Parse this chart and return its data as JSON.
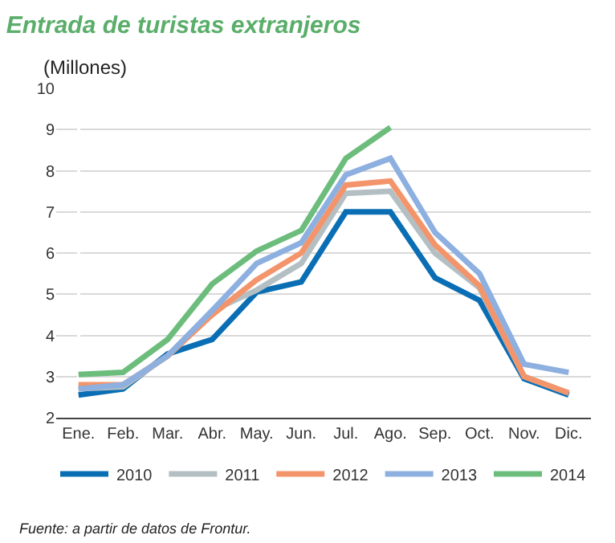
{
  "chart_data": {
    "type": "line",
    "title": "Entrada de turistas extranjeros",
    "subtitle": "(Millones)",
    "categories": [
      "Ene.",
      "Feb.",
      "Mar.",
      "Abr.",
      "May.",
      "Jun.",
      "Jul.",
      "Ago.",
      "Sep.",
      "Oct.",
      "Nov.",
      "Dic."
    ],
    "series": [
      {
        "name": "2010",
        "color": "#0a6eb4",
        "values": [
          2.55,
          2.7,
          3.55,
          3.9,
          5.05,
          5.3,
          7.0,
          7.0,
          5.4,
          4.85,
          2.95,
          2.55
        ]
      },
      {
        "name": "2011",
        "color": "#b4bfc4",
        "values": [
          2.7,
          2.75,
          3.5,
          4.6,
          5.1,
          5.75,
          7.45,
          7.5,
          6.0,
          5.15,
          3.0,
          2.6
        ]
      },
      {
        "name": "2012",
        "color": "#f3946a",
        "values": [
          2.8,
          2.8,
          3.5,
          4.5,
          5.35,
          6.0,
          7.65,
          7.75,
          6.2,
          5.2,
          3.0,
          2.6
        ]
      },
      {
        "name": "2013",
        "color": "#8db0e0",
        "values": [
          2.7,
          2.8,
          3.5,
          4.6,
          5.75,
          6.25,
          7.9,
          8.3,
          6.5,
          5.5,
          3.3,
          3.1
        ]
      },
      {
        "name": "2014",
        "color": "#6cbd7c",
        "values": [
          3.05,
          3.1,
          3.9,
          5.25,
          6.05,
          6.55,
          8.3,
          9.05,
          null,
          null,
          null,
          null
        ]
      }
    ],
    "ylim": [
      2,
      10
    ],
    "yticks": [
      2,
      3,
      4,
      5,
      6,
      7,
      8,
      9,
      10
    ],
    "grid": "y",
    "legend": "bottom",
    "marker": "none",
    "line_style": "solid",
    "annotations": [
      "Fuente: a partir de datos de Frontur."
    ]
  }
}
